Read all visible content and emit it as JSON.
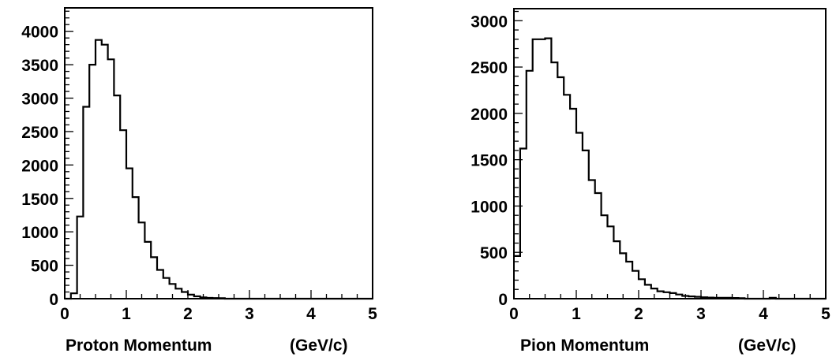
{
  "chart_data": [
    {
      "type": "bar",
      "xlabel": "Proton Momentum",
      "xunit": "(GeV/c)",
      "xlim": [
        0,
        5
      ],
      "ylim": [
        0,
        4350
      ],
      "x_ticks": [
        0,
        1,
        2,
        3,
        4,
        5
      ],
      "x_tick_labels": [
        "0",
        "1",
        "2",
        "3",
        "4",
        "5"
      ],
      "y_ticks": [
        0,
        500,
        1000,
        1500,
        2000,
        2500,
        3000,
        3500,
        4000
      ],
      "y_tick_labels": [
        "0",
        "500",
        "1000",
        "1500",
        "2000",
        "2500",
        "3000",
        "3500",
        "4000"
      ],
      "bin_width": 0.1,
      "bin_edges_start": 0,
      "values": [
        0,
        80,
        1230,
        2870,
        3500,
        3870,
        3800,
        3580,
        3040,
        2520,
        1950,
        1520,
        1140,
        850,
        620,
        430,
        310,
        220,
        150,
        100,
        60,
        35,
        20,
        12,
        10,
        8,
        0,
        0,
        0,
        0,
        0,
        0,
        0,
        0,
        0,
        0,
        0,
        0,
        0,
        0,
        0,
        0,
        0,
        0,
        0,
        0,
        0,
        0,
        0,
        0
      ]
    },
    {
      "type": "bar",
      "xlabel": "Pion Momentum",
      "xunit": "(GeV/c)",
      "xlim": [
        0,
        5
      ],
      "ylim": [
        0,
        3130
      ],
      "x_ticks": [
        0,
        1,
        2,
        3,
        4,
        5
      ],
      "x_tick_labels": [
        "0",
        "1",
        "2",
        "3",
        "4",
        "5"
      ],
      "y_ticks": [
        0,
        500,
        1000,
        1500,
        2000,
        2500,
        3000
      ],
      "y_tick_labels": [
        "0",
        "500",
        "1000",
        "1500",
        "2000",
        "2500",
        "3000"
      ],
      "bin_width": 0.1,
      "bin_edges_start": 0,
      "values": [
        460,
        1620,
        2460,
        2800,
        2800,
        2810,
        2550,
        2390,
        2200,
        2050,
        1790,
        1600,
        1280,
        1140,
        900,
        780,
        620,
        490,
        400,
        300,
        210,
        150,
        110,
        80,
        70,
        60,
        45,
        30,
        25,
        20,
        15,
        12,
        10,
        10,
        10,
        8,
        5,
        0,
        0,
        0,
        0,
        10,
        0,
        0,
        0,
        0,
        0,
        0,
        0,
        0
      ]
    }
  ]
}
